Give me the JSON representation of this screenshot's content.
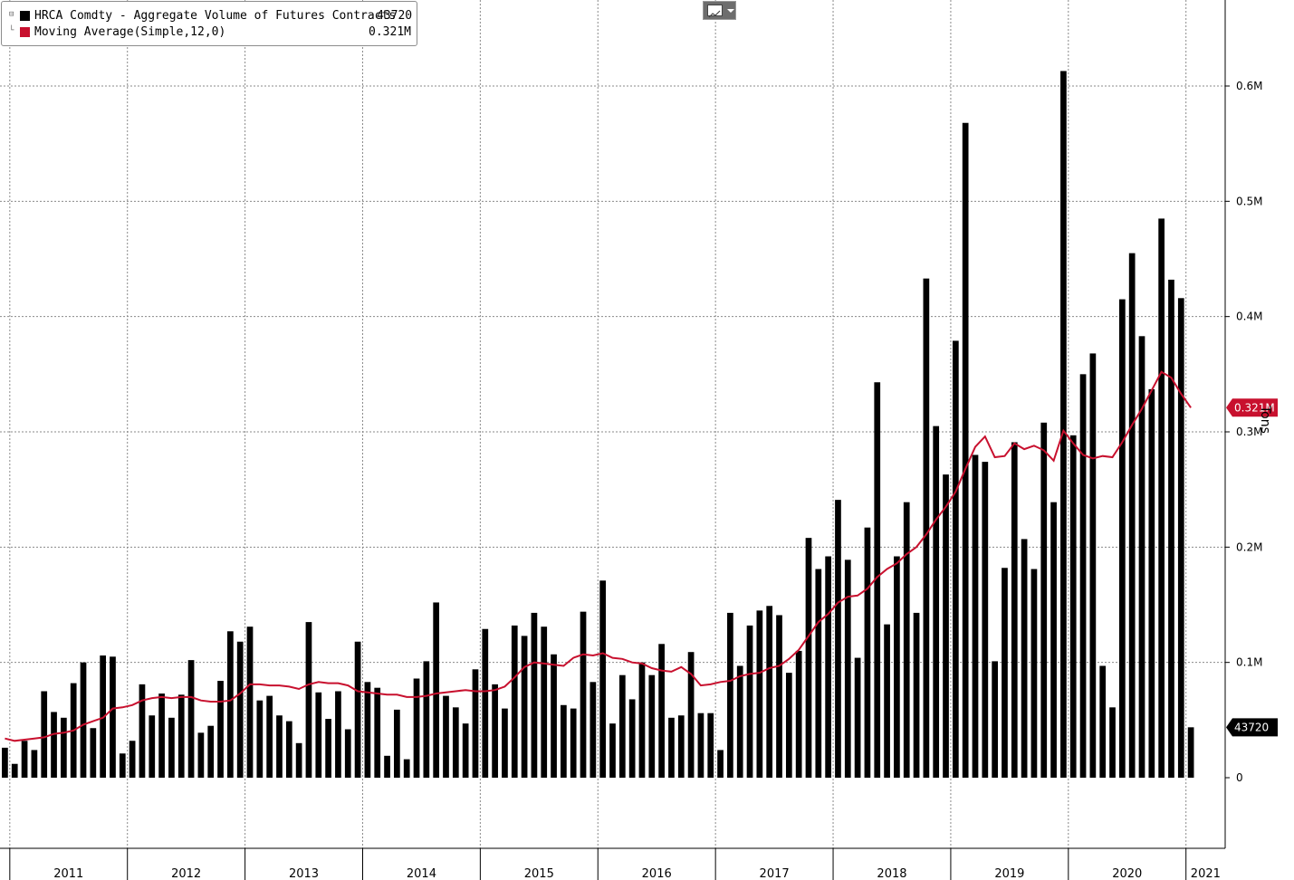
{
  "toolbar": {
    "chart_type_icon": "line-chart-icon",
    "dropdown_icon": "chevron-down-icon"
  },
  "legend": [
    {
      "label": "HRCA Comdty - Aggregate Volume of Futures Contracts",
      "value": "43720",
      "color": "#000000"
    },
    {
      "label": "Moving Average(Simple,12,0)",
      "value": "0.321M",
      "color": "#c8102e"
    }
  ],
  "chart_data": {
    "type": "bar",
    "title": "",
    "ylabel": "Tons",
    "ylim": [
      -55000,
      660000
    ],
    "y_ticks": [
      {
        "v": 0,
        "label": "0"
      },
      {
        "v": 100000,
        "label": "0.1M"
      },
      {
        "v": 200000,
        "label": "0.2M"
      },
      {
        "v": 300000,
        "label": "0.3M"
      },
      {
        "v": 400000,
        "label": "0.4M"
      },
      {
        "v": 500000,
        "label": "0.5M"
      },
      {
        "v": 600000,
        "label": "0.6M"
      }
    ],
    "x_start": "2010-12",
    "x_end": "2021-05",
    "year_ticks": [
      "2011",
      "2012",
      "2013",
      "2014",
      "2015",
      "2016",
      "2017",
      "2018",
      "2019",
      "2020",
      "2021"
    ],
    "grid": true,
    "legend_position": "top-left",
    "last_value_tags": [
      {
        "series": "Moving Average(Simple,12,0)",
        "value": 321000,
        "label": "0.321M",
        "color": "#c8102e"
      },
      {
        "series": "HRCA Comdty - Aggregate Volume of Futures Contracts",
        "value": 43720,
        "label": "43720",
        "color": "#000000"
      }
    ],
    "series": [
      {
        "name": "HRCA Comdty - Aggregate Volume of Futures Contracts",
        "kind": "bar",
        "color": "#000000",
        "values": [
          26000,
          12000,
          32000,
          24000,
          75000,
          57000,
          52000,
          82000,
          100000,
          43000,
          106000,
          105000,
          21000,
          32000,
          81000,
          54000,
          73000,
          52000,
          72000,
          102000,
          39000,
          45000,
          84000,
          127000,
          118000,
          131000,
          67000,
          71000,
          54000,
          49000,
          30000,
          135000,
          74000,
          51000,
          75000,
          42000,
          118000,
          83000,
          78000,
          19000,
          59000,
          16000,
          86000,
          101000,
          152000,
          71000,
          61000,
          47000,
          94000,
          129000,
          81000,
          60000,
          132000,
          123000,
          143000,
          131000,
          107000,
          63000,
          60000,
          144000,
          83000,
          171000,
          47000,
          89000,
          68000,
          100000,
          89000,
          116000,
          52000,
          54000,
          109000,
          56000,
          56000,
          24000,
          143000,
          97000,
          132000,
          145000,
          149000,
          141000,
          91000,
          110000,
          208000,
          181000,
          192000,
          241000,
          189000,
          104000,
          217000,
          343000,
          133000,
          192000,
          239000,
          143000,
          433000,
          305000,
          263000,
          379000,
          568000,
          280000,
          274000,
          101000,
          182000,
          291000,
          207000,
          181000,
          308000,
          239000,
          613000,
          297000,
          350000,
          368000,
          97000,
          61000,
          415000,
          455000,
          383000,
          337000,
          485000,
          432000,
          416000,
          43720
        ]
      },
      {
        "name": "Moving Average(Simple,12,0)",
        "kind": "line",
        "color": "#c8102e",
        "values": [
          34000,
          32000,
          33000,
          34000,
          35000,
          38000,
          39000,
          41000,
          46000,
          49000,
          52000,
          60000,
          61000,
          63000,
          67000,
          69000,
          70000,
          69000,
          70000,
          70000,
          67000,
          66000,
          66000,
          67000,
          73000,
          81000,
          81000,
          80000,
          80000,
          79000,
          77000,
          81000,
          83000,
          82000,
          82000,
          80000,
          75000,
          74000,
          73000,
          72000,
          72000,
          70000,
          70000,
          71000,
          73000,
          74000,
          75000,
          76000,
          75000,
          75000,
          76000,
          79000,
          87000,
          96000,
          100000,
          99000,
          98000,
          97000,
          104000,
          107000,
          106000,
          108000,
          104000,
          103000,
          100000,
          99000,
          95000,
          93000,
          92000,
          96000,
          90000,
          80000,
          81000,
          83000,
          84000,
          88000,
          90000,
          91000,
          95000,
          97000,
          103000,
          111000,
          123000,
          135000,
          142000,
          152000,
          157000,
          158000,
          164000,
          174000,
          181000,
          186000,
          194000,
          200000,
          211000,
          224000,
          235000,
          248000,
          268000,
          287000,
          296000,
          278000,
          279000,
          290000,
          285000,
          288000,
          284000,
          275000,
          301000,
          290000,
          280000,
          277000,
          279000,
          278000,
          291000,
          306000,
          320000,
          336000,
          352000,
          347000,
          333000,
          321000
        ]
      }
    ]
  }
}
